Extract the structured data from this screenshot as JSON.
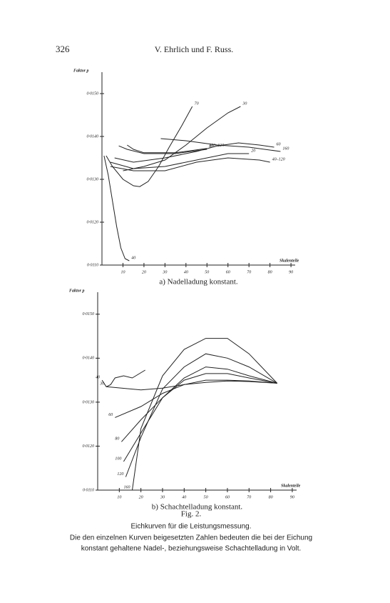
{
  "header": {
    "page": "326",
    "running_title": "V. Ehrlich und F. Russ."
  },
  "chart_data": [
    {
      "type": "line",
      "title": "a) Nadelladung konstant.",
      "y_label": "Faktor p",
      "x_label": "Skalenteile",
      "xlim": [
        0,
        92
      ],
      "ylim": [
        0.011,
        0.0155
      ],
      "xticks": [
        10,
        20,
        30,
        40,
        50,
        60,
        70,
        80,
        90
      ],
      "yticks": [
        {
          "value": 0.011,
          "label": "0·0110"
        },
        {
          "value": 0.012,
          "label": "0·0120"
        },
        {
          "value": 0.013,
          "label": "0·0130"
        },
        {
          "value": 0.014,
          "label": "0·0140"
        },
        {
          "value": 0.015,
          "label": "0·0150"
        }
      ],
      "color": "#222222",
      "series": [
        {
          "name": "70",
          "x": [
            2,
            5,
            10,
            15,
            18,
            22,
            27,
            32,
            38,
            43
          ],
          "values": [
            0.01355,
            0.0133,
            0.013,
            0.01285,
            0.01283,
            0.01295,
            0.0133,
            0.01375,
            0.01425,
            0.0147
          ]
        },
        {
          "name": "30",
          "x": [
            10,
            20,
            30,
            40,
            50,
            60,
            66
          ],
          "values": [
            0.0132,
            0.0133,
            0.01345,
            0.0138,
            0.0142,
            0.01455,
            0.0147
          ]
        },
        {
          "name": "160",
          "x": [
            28,
            40,
            55,
            70,
            85
          ],
          "values": [
            0.01395,
            0.0139,
            0.0138,
            0.01375,
            0.01365
          ]
        },
        {
          "name": "60",
          "x": [
            6,
            15,
            30,
            45,
            55,
            65,
            75,
            82
          ],
          "values": [
            0.0135,
            0.0134,
            0.0135,
            0.01365,
            0.01378,
            0.01385,
            0.0138,
            0.01375
          ]
        },
        {
          "name": "20",
          "x": [
            4,
            15,
            30,
            45,
            60,
            70
          ],
          "values": [
            0.0134,
            0.01325,
            0.0133,
            0.01345,
            0.0136,
            0.0136
          ]
        },
        {
          "name": "40–120",
          "x": [
            4,
            15,
            30,
            45,
            60,
            75,
            80
          ],
          "values": [
            0.0133,
            0.0132,
            0.0132,
            0.0134,
            0.0135,
            0.01345,
            0.0134
          ]
        },
        {
          "name": "40",
          "x": [
            1,
            3,
            5,
            7,
            9,
            11,
            13
          ],
          "values": [
            0.01355,
            0.0131,
            0.0125,
            0.0119,
            0.0114,
            0.01115,
            0.0111
          ]
        },
        {
          "name": "80",
          "x": [
            8,
            12,
            20,
            35,
            50
          ],
          "values": [
            0.01378,
            0.0137,
            0.0136,
            0.0136,
            0.0137
          ]
        },
        {
          "name": "100–120",
          "x": [
            12,
            15,
            20,
            35,
            50
          ],
          "values": [
            0.0138,
            0.0137,
            0.01362,
            0.01362,
            0.01372
          ]
        }
      ]
    },
    {
      "type": "line",
      "title": "b) Schachtelladung konstant.",
      "y_label": "Faktor p",
      "x_label": "Skalenteile",
      "xlim": [
        0,
        92
      ],
      "ylim": [
        0.011,
        0.0155
      ],
      "xticks": [
        10,
        20,
        30,
        40,
        50,
        60,
        70,
        80,
        90
      ],
      "yticks": [
        {
          "value": 0.011,
          "label": "0·0110"
        },
        {
          "value": 0.012,
          "label": "0·0120"
        },
        {
          "value": 0.013,
          "label": "0·0130"
        },
        {
          "value": 0.014,
          "label": "0·0140"
        },
        {
          "value": 0.015,
          "label": "0·0150"
        }
      ],
      "color": "#222222",
      "series": [
        {
          "name": "40",
          "x": [
            2,
            4,
            6,
            8,
            12,
            16,
            22
          ],
          "values": [
            0.0135,
            0.01335,
            0.0134,
            0.01355,
            0.0136,
            0.01355,
            0.01373
          ]
        },
        {
          "name": "30",
          "x": [
            4,
            20,
            30,
            40,
            50,
            60,
            70,
            83
          ],
          "values": [
            0.01335,
            0.01328,
            0.01332,
            0.0134,
            0.01345,
            0.01348,
            0.01347,
            0.01343
          ]
        },
        {
          "name": "60",
          "x": [
            8,
            20,
            30,
            40,
            50,
            60,
            70,
            83
          ],
          "values": [
            0.01265,
            0.0129,
            0.0132,
            0.0134,
            0.0135,
            0.0135,
            0.01348,
            0.01343
          ]
        },
        {
          "name": "80",
          "x": [
            11,
            20,
            30,
            40,
            50,
            60,
            70,
            83
          ],
          "values": [
            0.0121,
            0.0126,
            0.0131,
            0.0135,
            0.01365,
            0.01365,
            0.01355,
            0.01343
          ]
        },
        {
          "name": "100",
          "x": [
            12,
            20,
            30,
            40,
            50,
            60,
            70,
            83
          ],
          "values": [
            0.01165,
            0.0123,
            0.0131,
            0.01355,
            0.0138,
            0.01375,
            0.0136,
            0.01343
          ]
        },
        {
          "name": "120",
          "x": [
            13,
            20,
            30,
            40,
            50,
            60,
            70,
            83
          ],
          "values": [
            0.0113,
            0.0122,
            0.0133,
            0.0138,
            0.0141,
            0.014,
            0.0138,
            0.01343
          ]
        },
        {
          "name": "160",
          "x": [
            16,
            20,
            30,
            40,
            50,
            60,
            70,
            83
          ],
          "values": [
            0.011,
            0.0124,
            0.0136,
            0.0142,
            0.01445,
            0.01445,
            0.0141,
            0.01343
          ]
        }
      ]
    }
  ],
  "caption": {
    "figure": "Fig. 2.",
    "title": "Eichkurven für die Leistungsmessung.",
    "lines": [
      "Die den einzelnen Kurven beigesetzten Zahlen bedeuten die bei der Eichung",
      "konstant gehaltene Nadel-, beziehungsweise Schachtelladung in Volt."
    ]
  }
}
